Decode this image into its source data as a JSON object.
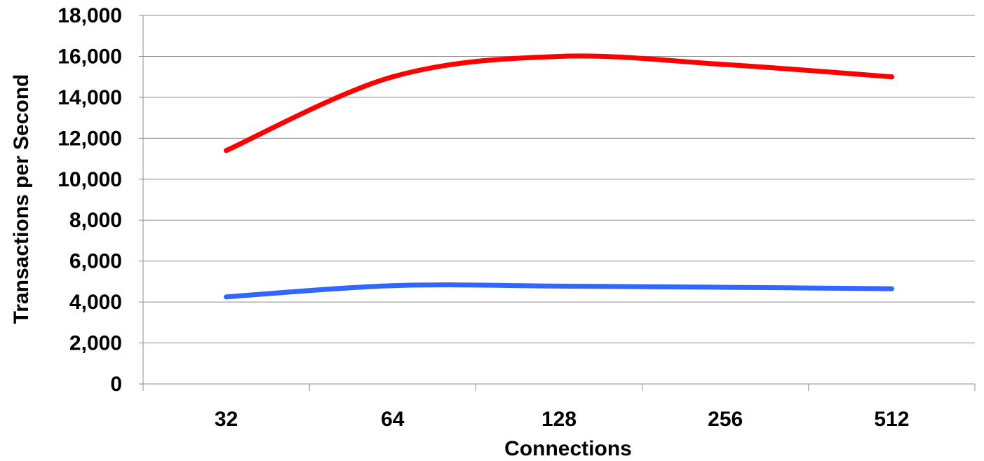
{
  "chart_data": {
    "type": "line",
    "title": "",
    "xlabel": "Connections",
    "ylabel": "Transactions per Second",
    "categories": [
      "32",
      "64",
      "128",
      "256",
      "512"
    ],
    "ylim": [
      0,
      18000
    ],
    "ytick_step": 2000,
    "ytick_labels": [
      "0",
      "2,000",
      "4,000",
      "6,000",
      "8,000",
      "10,000",
      "12,000",
      "14,000",
      "16,000",
      "18,000"
    ],
    "grid": true,
    "legend": "none",
    "smooth": true,
    "series": [
      {
        "color": "#ff0000",
        "values": [
          11400,
          15000,
          16000,
          15600,
          15000
        ]
      },
      {
        "color": "#3366ff",
        "values": [
          4250,
          4800,
          4780,
          4720,
          4650
        ]
      }
    ]
  }
}
